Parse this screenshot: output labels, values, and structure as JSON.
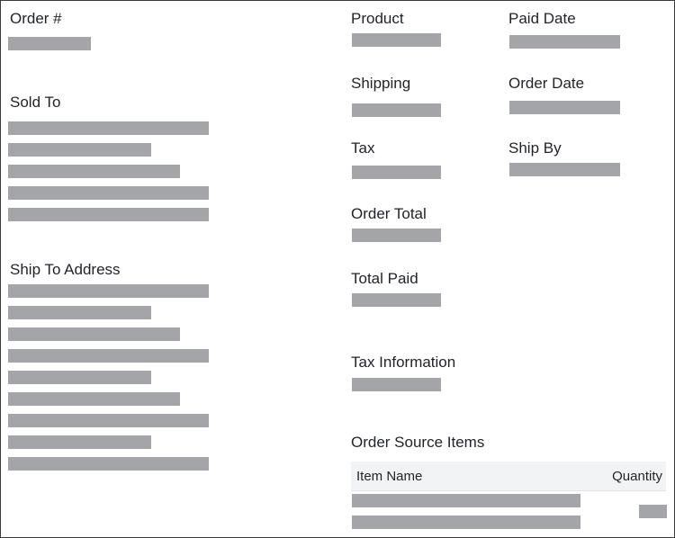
{
  "left_column": {
    "order_number_label": "Order #",
    "sold_to_label": "Sold To",
    "ship_to_label": "Ship To Address"
  },
  "middle_column": {
    "product_label": "Product",
    "shipping_label": "Shipping",
    "tax_label": "Tax",
    "order_total_label": "Order Total",
    "total_paid_label": "Total Paid",
    "tax_information_label": "Tax Information"
  },
  "right_column": {
    "paid_date_label": "Paid Date",
    "order_date_label": "Order Date",
    "ship_by_label": "Ship By"
  },
  "order_source_items": {
    "title": "Order Source Items",
    "columns": [
      "Item Name",
      "Quantity"
    ]
  },
  "colors": {
    "placeholder": "#a3a5a9",
    "header_bg": "#f2f3f5",
    "text": "#1f2328"
  }
}
